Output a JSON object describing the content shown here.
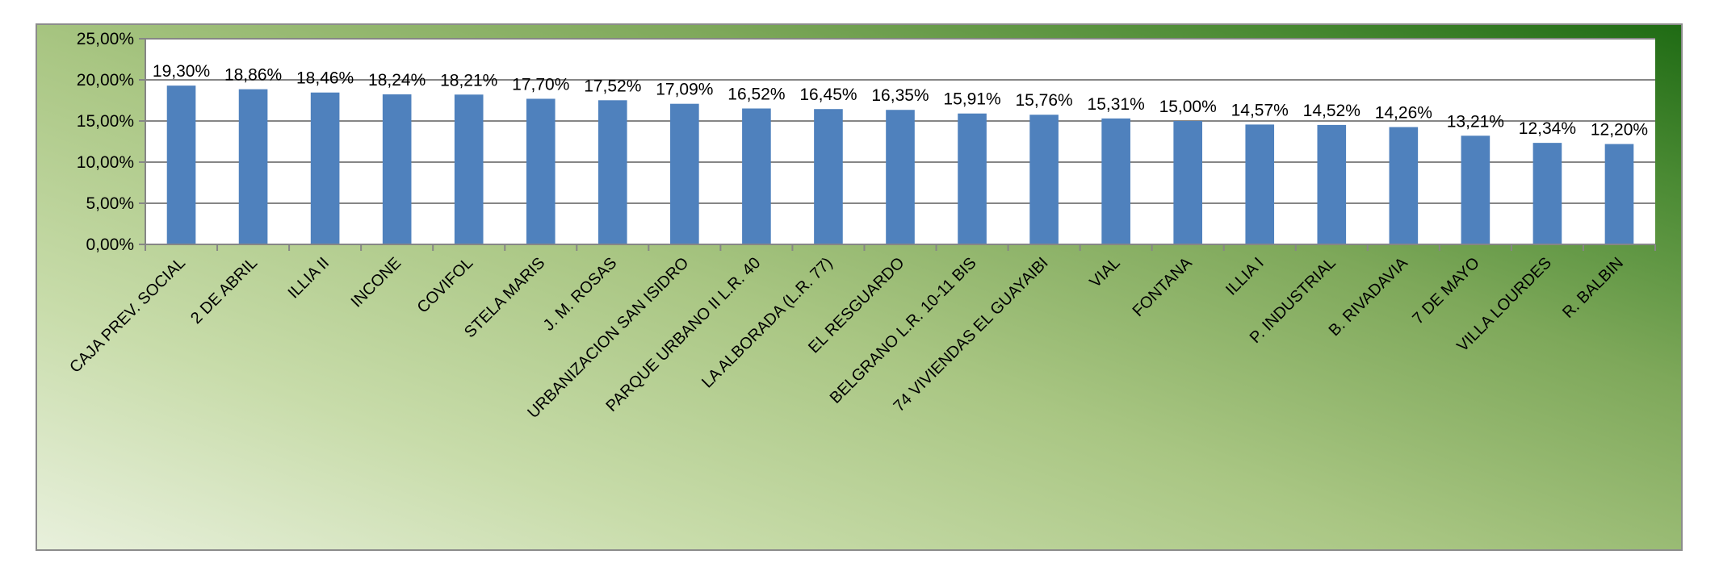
{
  "chart_data": {
    "type": "bar",
    "categories": [
      "CAJA PREV. SOCIAL",
      "2 DE ABRIL",
      "ILLIA II",
      "INCONE",
      "COVIFOL",
      "STELA MARIS",
      "J. M. ROSAS",
      "URBANIZACION SAN ISIDRO",
      "PARQUE URBANO II L.R. 40",
      "LA ALBORADA (L.R. 77)",
      "EL RESGUARDO",
      "BELGRANO L.R. 10-11 BIS",
      "74 VIVIENDAS EL GUAYAIBI",
      "VIAL",
      "FONTANA",
      "ILLIA I",
      "P. INDUSTRIAL",
      "B. RIVADAVIA",
      "7 DE MAYO",
      "VILLA LOURDES",
      "R. BALBIN"
    ],
    "values": [
      19.3,
      18.86,
      18.46,
      18.24,
      18.21,
      17.7,
      17.52,
      17.09,
      16.52,
      16.45,
      16.35,
      15.91,
      15.76,
      15.31,
      15.0,
      14.57,
      14.52,
      14.26,
      13.21,
      12.34,
      12.2
    ],
    "value_labels": [
      "19,30%",
      "18,86%",
      "18,46%",
      "18,24%",
      "18,21%",
      "17,70%",
      "17,52%",
      "17,09%",
      "16,52%",
      "16,45%",
      "16,35%",
      "15,91%",
      "15,76%",
      "15,31%",
      "15,00%",
      "14,57%",
      "14,52%",
      "14,26%",
      "13,21%",
      "12,34%",
      "12,20%"
    ],
    "ylim": [
      0,
      25
    ],
    "yticks": [
      0,
      5,
      10,
      15,
      20,
      25
    ],
    "ytick_labels": [
      "0,00%",
      "5,00%",
      "10,00%",
      "15,00%",
      "20,00%",
      "25,00%"
    ],
    "title": "",
    "xlabel": "",
    "ylabel": "",
    "grid": true,
    "legend": "none",
    "bar_color": "#4f81bd"
  }
}
